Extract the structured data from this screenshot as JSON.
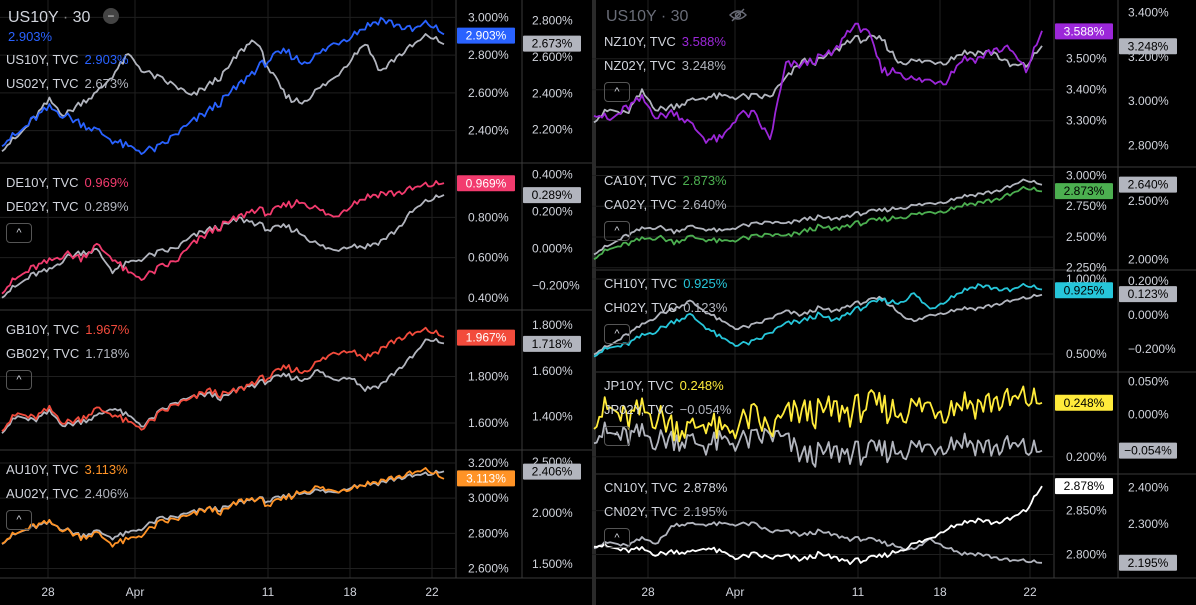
{
  "left_title": {
    "symbol": "US10Y",
    "sep": "·",
    "interval": "30",
    "value": "2.903%"
  },
  "right_title": {
    "symbol": "US10Y",
    "sep": "·",
    "interval": "30"
  },
  "colors": {
    "grid": "#1f1f1f",
    "divider": "#3a3a3a",
    "text": "#d1d4dc",
    "sub": "#b2b5be"
  },
  "x_axis": {
    "left_ticks": [
      "28",
      "Apr",
      "11",
      "18",
      "22"
    ],
    "right_ticks": [
      "28",
      "Apr",
      "11",
      "18",
      "22"
    ]
  },
  "chart_data": [
    {
      "id": "us",
      "type": "line",
      "panel": "left-1",
      "series": [
        {
          "name": "US10Y, TVC",
          "value": "2.903%",
          "color": "#2962ff",
          "last": 2.903
        },
        {
          "name": "US02Y, TVC",
          "value": "2.673%",
          "color": "#b2b5be",
          "last": 2.673
        }
      ],
      "axis1": {
        "ticks": [
          "3.000%",
          "2.800%",
          "2.600%",
          "2.400%"
        ],
        "vals": [
          3.0,
          2.8,
          2.6,
          2.4
        ],
        "ylim": [
          2.26,
          3.06
        ]
      },
      "axis2": {
        "ticks": [
          "2.800%",
          "2.600%",
          "2.400%",
          "2.200%"
        ],
        "vals": [
          2.8,
          2.6,
          2.4,
          2.2
        ],
        "ylim": [
          2.05,
          2.88
        ]
      },
      "s1": [
        2.34,
        2.38,
        2.46,
        2.52,
        2.48,
        2.44,
        2.4,
        2.35,
        2.31,
        2.29,
        2.31,
        2.38,
        2.44,
        2.5,
        2.56,
        2.64,
        2.72,
        2.78,
        2.82,
        2.76,
        2.8,
        2.86,
        2.9,
        2.95,
        2.99,
        2.96,
        2.93,
        2.97,
        2.91
      ],
      "s2": [
        2.1,
        2.16,
        2.26,
        2.36,
        2.28,
        2.35,
        2.4,
        2.5,
        2.61,
        2.52,
        2.48,
        2.44,
        2.38,
        2.44,
        2.5,
        2.62,
        2.7,
        2.52,
        2.38,
        2.35,
        2.42,
        2.48,
        2.58,
        2.68,
        2.52,
        2.6,
        2.66,
        2.72,
        2.67
      ]
    },
    {
      "id": "de",
      "type": "line",
      "panel": "left-2",
      "series": [
        {
          "name": "DE10Y, TVC",
          "value": "0.969%",
          "color": "#f23b6e",
          "last": 0.969
        },
        {
          "name": "DE02Y, TVC",
          "value": "0.289%",
          "color": "#b2b5be",
          "last": 0.289
        }
      ],
      "axis1": {
        "ticks": [
          "0.800%",
          "0.600%",
          "0.400%"
        ],
        "vals": [
          0.8,
          0.6,
          0.4
        ],
        "ylim": [
          0.37,
          1.04
        ]
      },
      "axis2": {
        "ticks": [
          "0.400%",
          "0.200%",
          "0.000%",
          "−0.200%"
        ],
        "vals": [
          0.4,
          0.2,
          0.0,
          -0.2
        ],
        "ylim": [
          -0.3,
          0.43
        ]
      },
      "s1": [
        0.44,
        0.5,
        0.55,
        0.58,
        0.62,
        0.6,
        0.66,
        0.6,
        0.52,
        0.5,
        0.55,
        0.58,
        0.66,
        0.72,
        0.76,
        0.8,
        0.84,
        0.82,
        0.86,
        0.88,
        0.84,
        0.8,
        0.86,
        0.9,
        0.92,
        0.92,
        0.94,
        0.96,
        0.97
      ],
      "s2": [
        -0.25,
        -0.2,
        -0.14,
        -0.12,
        -0.05,
        -0.02,
        -0.01,
        -0.12,
        -0.08,
        -0.05,
        -0.02,
        0.0,
        0.06,
        0.1,
        0.12,
        0.16,
        0.14,
        0.1,
        0.12,
        0.08,
        0.02,
        -0.01,
        0.02,
        0.01,
        0.04,
        0.1,
        0.2,
        0.26,
        0.29
      ]
    },
    {
      "id": "gb",
      "type": "line",
      "panel": "left-3",
      "series": [
        {
          "name": "GB10Y, TVC",
          "value": "1.967%",
          "color": "#f24b3c",
          "last": 1.967
        },
        {
          "name": "GB02Y, TVC",
          "value": "1.718%",
          "color": "#b2b5be",
          "last": 1.718
        }
      ],
      "axis1": {
        "ticks": [
          "1.800%",
          "1.600%"
        ],
        "vals": [
          1.8,
          1.6
        ],
        "ylim": [
          1.51,
          2.06
        ]
      },
      "axis2": {
        "ticks": [
          "1.800%",
          "1.600%",
          "1.400%"
        ],
        "vals": [
          1.8,
          1.6,
          1.4
        ],
        "ylim": [
          1.28,
          1.84
        ]
      },
      "s1": [
        1.58,
        1.64,
        1.62,
        1.66,
        1.6,
        1.62,
        1.66,
        1.64,
        1.6,
        1.58,
        1.64,
        1.68,
        1.7,
        1.74,
        1.72,
        1.74,
        1.78,
        1.8,
        1.84,
        1.82,
        1.86,
        1.9,
        1.92,
        1.88,
        1.92,
        1.96,
        1.98,
        2.0,
        1.97
      ],
      "s2": [
        1.34,
        1.4,
        1.38,
        1.42,
        1.36,
        1.38,
        1.4,
        1.44,
        1.4,
        1.36,
        1.42,
        1.46,
        1.48,
        1.5,
        1.48,
        1.52,
        1.54,
        1.56,
        1.58,
        1.56,
        1.6,
        1.56,
        1.58,
        1.52,
        1.54,
        1.6,
        1.66,
        1.74,
        1.72
      ]
    },
    {
      "id": "au",
      "type": "line",
      "panel": "left-4",
      "series": [
        {
          "name": "AU10Y, TVC",
          "value": "3.113%",
          "color": "#ff9326",
          "last": 3.113
        },
        {
          "name": "AU02Y, TVC",
          "value": "2.406%",
          "color": "#b2b5be",
          "last": 2.406
        }
      ],
      "axis1": {
        "ticks": [
          "3.200%",
          "3.000%",
          "2.800%",
          "2.600%"
        ],
        "vals": [
          3.2,
          3.0,
          2.8,
          2.6
        ],
        "ylim": [
          2.58,
          3.24
        ]
      },
      "axis2": {
        "ticks": [
          "2.500%",
          "2.000%",
          "1.500%"
        ],
        "vals": [
          2.5,
          2.0,
          1.5
        ],
        "ylim": [
          1.42,
          2.56
        ]
      },
      "s1": [
        2.76,
        2.8,
        2.84,
        2.86,
        2.82,
        2.78,
        2.8,
        2.74,
        2.76,
        2.8,
        2.86,
        2.88,
        2.9,
        2.94,
        2.92,
        2.98,
        3.0,
        2.96,
        3.0,
        3.04,
        3.06,
        3.04,
        3.06,
        3.08,
        3.1,
        3.12,
        3.14,
        3.16,
        3.11
      ],
      "s2": [
        1.72,
        1.8,
        1.86,
        1.9,
        1.84,
        1.78,
        1.82,
        1.76,
        1.8,
        1.86,
        1.94,
        1.96,
        2.0,
        2.04,
        2.04,
        2.1,
        2.14,
        2.12,
        2.16,
        2.2,
        2.22,
        2.2,
        2.26,
        2.28,
        2.3,
        2.34,
        2.36,
        2.38,
        2.41
      ]
    },
    {
      "id": "nz",
      "type": "line",
      "panel": "right-1",
      "series": [
        {
          "name": "NZ10Y, TVC",
          "value": "3.588%",
          "color": "#9c27d9",
          "last": 3.588
        },
        {
          "name": "NZ02Y, TVC",
          "value": "3.248%",
          "color": "#b2b5be",
          "last": 3.248
        }
      ],
      "axis1": {
        "ticks": [
          "3.500%",
          "3.400%",
          "3.300%"
        ],
        "vals": [
          3.5,
          3.4,
          3.3
        ],
        "ylim": [
          3.17,
          3.67
        ]
      },
      "axis2": {
        "ticks": [
          "3.400%",
          "3.200%",
          "3.000%",
          "2.800%"
        ],
        "vals": [
          3.4,
          3.2,
          3.0,
          2.8
        ],
        "ylim": [
          2.73,
          3.43
        ]
      },
      "s1": [
        3.33,
        3.3,
        3.34,
        3.37,
        3.31,
        3.33,
        3.29,
        3.24,
        3.24,
        3.32,
        3.32,
        3.24,
        3.48,
        3.48,
        3.5,
        3.52,
        3.6,
        3.6,
        3.46,
        3.46,
        3.43,
        3.43,
        3.43,
        3.5,
        3.5,
        3.53,
        3.53,
        3.46,
        3.59
      ],
      "s2": [
        2.92,
        2.96,
        2.94,
        3.04,
        2.96,
        2.98,
        3.0,
        3.02,
        3.02,
        3.02,
        3.02,
        3.02,
        3.1,
        3.18,
        3.18,
        3.22,
        3.28,
        3.28,
        3.28,
        3.18,
        3.18,
        3.18,
        3.18,
        3.22,
        3.22,
        3.22,
        3.16,
        3.16,
        3.25
      ]
    },
    {
      "id": "ca",
      "type": "line",
      "panel": "right-2",
      "series": [
        {
          "name": "CA10Y, TVC",
          "value": "2.873%",
          "color": "#4caf50",
          "last": 2.873
        },
        {
          "name": "CA02Y, TVC",
          "value": "2.640%",
          "color": "#b2b5be",
          "last": 2.64
        }
      ],
      "axis1": {
        "ticks": [
          "3.000%",
          "2.750%",
          "2.500%",
          "2.250%"
        ],
        "vals": [
          3.0,
          2.75,
          2.5,
          2.25
        ],
        "ylim": [
          2.28,
          3.02
        ]
      },
      "axis2": {
        "ticks": [
          "2.500%",
          "2.000%"
        ],
        "vals": [
          2.5,
          2.0
        ],
        "ylim": [
          1.96,
          2.74
        ]
      },
      "s1": [
        2.34,
        2.4,
        2.44,
        2.48,
        2.5,
        2.46,
        2.5,
        2.48,
        2.46,
        2.48,
        2.5,
        2.52,
        2.5,
        2.54,
        2.58,
        2.56,
        2.6,
        2.62,
        2.64,
        2.66,
        2.68,
        2.7,
        2.72,
        2.76,
        2.78,
        2.8,
        2.84,
        2.9,
        2.87
      ],
      "s2": [
        2.06,
        2.12,
        2.2,
        2.26,
        2.28,
        2.24,
        2.28,
        2.26,
        2.24,
        2.28,
        2.3,
        2.32,
        2.3,
        2.34,
        2.36,
        2.34,
        2.38,
        2.4,
        2.42,
        2.44,
        2.46,
        2.48,
        2.5,
        2.54,
        2.56,
        2.58,
        2.62,
        2.68,
        2.64
      ]
    },
    {
      "id": "ch",
      "type": "line",
      "panel": "right-3",
      "series": [
        {
          "name": "CH10Y, TVC",
          "value": "0.925%",
          "color": "#26c6da",
          "last": 0.925
        },
        {
          "name": "CH02Y, TVC",
          "value": "0.123%",
          "color": "#b2b5be",
          "last": 0.123
        }
      ],
      "axis1": {
        "ticks": [
          "1.000%",
          "0.500%"
        ],
        "vals": [
          1.0,
          0.5
        ],
        "ylim": [
          0.42,
          1.02
        ]
      },
      "axis2": {
        "ticks": [
          "0.200%",
          "0.000%",
          "−0.200%"
        ],
        "vals": [
          0.2,
          0.0,
          -0.2
        ],
        "ylim": [
          -0.3,
          0.23
        ]
      },
      "s1": [
        0.5,
        0.54,
        0.56,
        0.62,
        0.66,
        0.72,
        0.76,
        0.68,
        0.6,
        0.56,
        0.58,
        0.64,
        0.7,
        0.72,
        0.76,
        0.72,
        0.78,
        0.82,
        0.86,
        0.84,
        0.9,
        0.8,
        0.86,
        0.92,
        0.96,
        0.94,
        0.92,
        0.96,
        0.93
      ],
      "s2": [
        -0.22,
        -0.18,
        -0.12,
        -0.06,
        0.0,
        0.04,
        0.08,
        0.02,
        -0.04,
        -0.08,
        -0.06,
        -0.02,
        0.02,
        0.0,
        0.04,
        0.02,
        0.06,
        0.08,
        0.1,
        0.02,
        -0.04,
        0.0,
        0.02,
        0.04,
        0.04,
        0.06,
        0.08,
        0.1,
        0.12
      ]
    },
    {
      "id": "jp",
      "type": "line",
      "panel": "right-4",
      "series": [
        {
          "name": "JP10Y, TVC",
          "value": "0.248%",
          "color": "#ffeb3b",
          "last": 0.248
        },
        {
          "name": "JP02Y, TVC",
          "value": "−0.054%",
          "color": "#b2b5be",
          "last": -0.054
        }
      ],
      "axis1": {
        "ticks": [
          "0.200%"
        ],
        "vals": [
          0.2
        ],
        "ylim": [
          0.19,
          0.27
        ]
      },
      "axis2": {
        "ticks": [
          "0.050%",
          "0.000%",
          "−0.050%"
        ],
        "vals": [
          0.05,
          0.0,
          -0.05
        ],
        "ylim": [
          -0.08,
          0.055
        ]
      },
      "s1": [
        0.238,
        0.242,
        0.232,
        0.24,
        0.236,
        0.228,
        0.224,
        0.232,
        0.22,
        0.228,
        0.236,
        0.222,
        0.236,
        0.24,
        0.238,
        0.242,
        0.24,
        0.246,
        0.244,
        0.24,
        0.244,
        0.246,
        0.242,
        0.25,
        0.246,
        0.25,
        0.248,
        0.252,
        0.248
      ],
      "s2": [
        -0.025,
        -0.03,
        -0.035,
        -0.03,
        -0.038,
        -0.035,
        -0.04,
        -0.045,
        -0.042,
        -0.04,
        -0.038,
        -0.03,
        -0.04,
        -0.062,
        -0.06,
        -0.058,
        -0.056,
        -0.058,
        -0.055,
        -0.052,
        -0.05,
        -0.048,
        -0.042,
        -0.038,
        -0.045,
        -0.05,
        -0.048,
        -0.052,
        -0.054
      ]
    },
    {
      "id": "cn",
      "type": "line",
      "panel": "right-5",
      "series": [
        {
          "name": "CN10Y, TVC",
          "value": "2.878%",
          "color": "#ffffff",
          "last": 2.878
        },
        {
          "name": "CN02Y, TVC",
          "value": "2.195%",
          "color": "#b2b5be",
          "last": 2.195
        }
      ],
      "axis1": {
        "ticks": [
          "2.850%",
          "2.800%"
        ],
        "vals": [
          2.85,
          2.8
        ],
        "ylim": [
          2.78,
          2.885
        ]
      },
      "axis2": {
        "ticks": [
          "2.400%",
          "2.300%",
          "2.200%"
        ],
        "vals": [
          2.4,
          2.3,
          2.2
        ],
        "ylim": [
          2.17,
          2.42
        ]
      },
      "s1": [
        2.812,
        2.808,
        2.804,
        2.806,
        2.8,
        2.804,
        2.802,
        2.808,
        2.802,
        2.796,
        2.8,
        2.796,
        2.798,
        2.794,
        2.8,
        2.796,
        2.792,
        2.794,
        2.798,
        2.804,
        2.812,
        2.818,
        2.83,
        2.836,
        2.84,
        2.836,
        2.84,
        2.85,
        2.878
      ],
      "s2": [
        2.24,
        2.25,
        2.24,
        2.26,
        2.25,
        2.3,
        2.3,
        2.3,
        2.3,
        2.3,
        2.3,
        2.28,
        2.28,
        2.27,
        2.28,
        2.27,
        2.26,
        2.26,
        2.25,
        2.24,
        2.23,
        2.26,
        2.24,
        2.22,
        2.22,
        2.21,
        2.2,
        2.2,
        2.195
      ]
    }
  ]
}
